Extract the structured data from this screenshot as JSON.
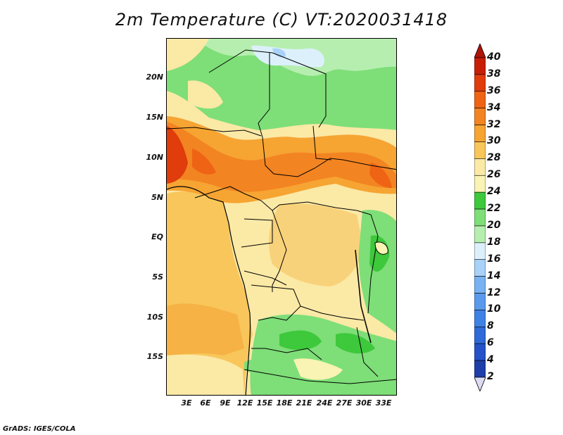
{
  "title": "2m Temperature (C) VT:2020031418",
  "footer": "GrADS: IGES/COLA",
  "map": {
    "lat_labels": [
      "20N",
      "15N",
      "10N",
      "5N",
      "EQ",
      "5S",
      "10S",
      "15S"
    ],
    "lon_labels": [
      "3E",
      "6E",
      "9E",
      "12E",
      "15E",
      "18E",
      "21E",
      "24E",
      "27E",
      "30E",
      "33E"
    ],
    "region": "Central Africa"
  },
  "colorbar": {
    "levels": [
      "2",
      "4",
      "6",
      "8",
      "10",
      "12",
      "14",
      "16",
      "18",
      "20",
      "22",
      "24",
      "26",
      "28",
      "30",
      "32",
      "34",
      "36",
      "38",
      "40"
    ],
    "colors": [
      "#1a1a7a",
      "#1e3ea8",
      "#2452c8",
      "#2e6ad8",
      "#3e82e4",
      "#5a9aec",
      "#79b2f2",
      "#a8d2f8",
      "#dcf0fc",
      "#b6eeb0",
      "#7ede78",
      "#3ec83c",
      "#f9f3b4",
      "#fbe9a6",
      "#f8c65a",
      "#f6a432",
      "#f38422",
      "#ef6414",
      "#e03c0c",
      "#c81e08"
    ],
    "top_color": "#b01408",
    "bottom_color": "#dcdcf4"
  }
}
